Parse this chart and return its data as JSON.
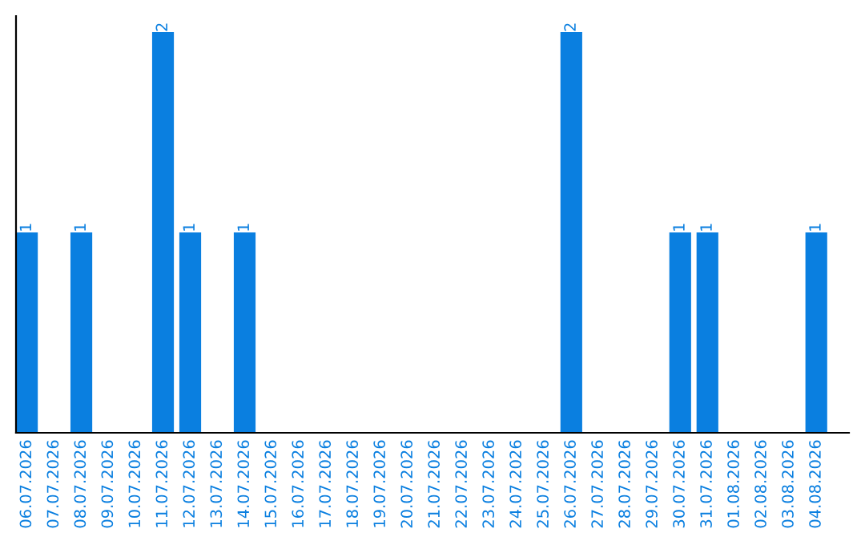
{
  "chart_data": {
    "type": "bar",
    "categories": [
      "06.07.2026",
      "07.07.2026",
      "08.07.2026",
      "09.07.2026",
      "10.07.2026",
      "11.07.2026",
      "12.07.2026",
      "13.07.2026",
      "14.07.2026",
      "15.07.2026",
      "16.07.2026",
      "17.07.2026",
      "18.07.2026",
      "19.07.2026",
      "20.07.2026",
      "21.07.2026",
      "22.07.2026",
      "23.07.2026",
      "24.07.2026",
      "25.07.2026",
      "26.07.2026",
      "27.07.2026",
      "28.07.2026",
      "29.07.2026",
      "30.07.2026",
      "31.07.2026",
      "01.08.2026",
      "02.08.2026",
      "03.08.2026",
      "04.08.2026"
    ],
    "values": [
      1,
      0,
      1,
      0,
      0,
      2,
      1,
      0,
      1,
      0,
      0,
      0,
      0,
      0,
      0,
      0,
      0,
      0,
      0,
      0,
      2,
      0,
      0,
      0,
      1,
      1,
      0,
      0,
      0,
      1
    ],
    "value_labels": [
      "1",
      null,
      "1",
      null,
      null,
      "2",
      "1",
      null,
      "1",
      null,
      null,
      null,
      null,
      null,
      null,
      null,
      null,
      null,
      null,
      null,
      "2",
      null,
      null,
      null,
      "1",
      "1",
      null,
      null,
      null,
      "1"
    ],
    "color": "#0a7fe0",
    "ylim": [
      0,
      2.08
    ],
    "tick_labels": "x",
    "grid": false,
    "legend": false
  }
}
